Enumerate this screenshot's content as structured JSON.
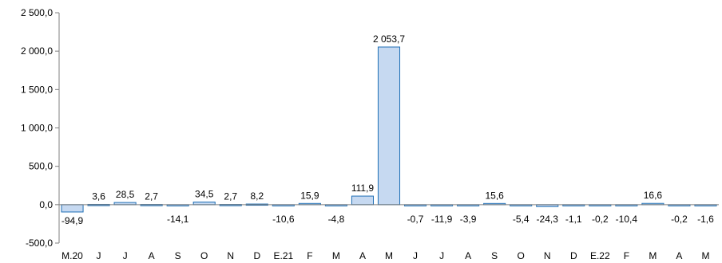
{
  "chart_data": {
    "type": "bar",
    "categories": [
      "M.20",
      "J",
      "J",
      "A",
      "S",
      "O",
      "N",
      "D",
      "E.21",
      "F",
      "M",
      "A",
      "M",
      "J",
      "J",
      "A",
      "S",
      "O",
      "N",
      "D",
      "E.22",
      "F",
      "M",
      "A",
      "M"
    ],
    "values": [
      -94.9,
      3.6,
      28.5,
      2.7,
      -14.1,
      34.5,
      2.7,
      8.2,
      -10.6,
      15.9,
      -4.8,
      111.9,
      2053.7,
      -0.7,
      -11.9,
      -3.9,
      15.6,
      -5.4,
      -24.3,
      -1.1,
      -0.2,
      -10.4,
      16.6,
      -0.2,
      -1.6
    ],
    "data_labels": [
      "-94,9",
      "3,6",
      "28,5",
      "2,7",
      "-14,1",
      "34,5",
      "2,7",
      "8,2",
      "-10,6",
      "15,9",
      "-4,8",
      "111,9",
      "2 053,7",
      "-0,7",
      "-11,9",
      "-3,9",
      "15,6",
      "-5,4",
      "-24,3",
      "-1,1",
      "-0,2",
      "-10,4",
      "16,6",
      "-0,2",
      "-1,6"
    ],
    "yticks": [
      -500,
      0,
      500,
      1000,
      1500,
      2000,
      2500
    ],
    "ytick_labels": [
      "-500,0",
      "0,0",
      "500,0",
      "1 000,0",
      "1 500,0",
      "2 000,0",
      "2 500,0"
    ],
    "ylim": [
      -500,
      2500
    ],
    "title": "",
    "xlabel": "",
    "ylabel": "",
    "grid": false,
    "colors": {
      "bar_fill": "#c6d9f1",
      "bar_stroke": "#1f6fb5",
      "axis": "#808080"
    }
  }
}
